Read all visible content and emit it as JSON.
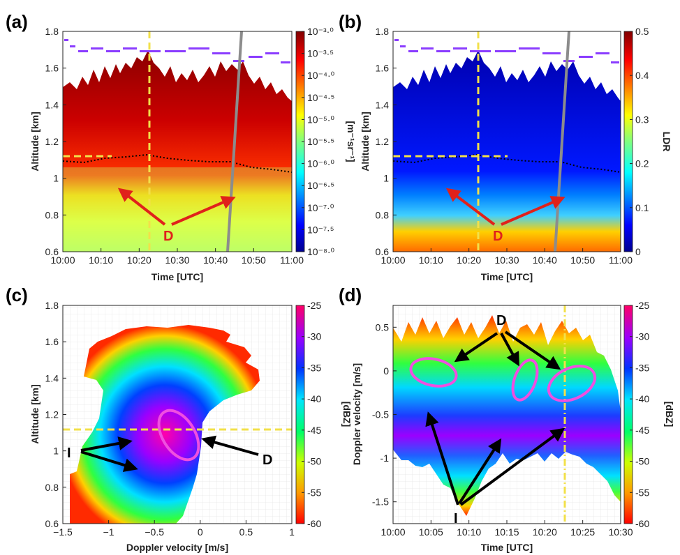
{
  "panels": [
    {
      "id": "a",
      "label": "(a)",
      "type": "heatmap",
      "xlabel": "Time [UTC]",
      "ylabel": "Altitude [km]",
      "xticks": [
        "10:00",
        "10:10",
        "10:20",
        "10:30",
        "10:40",
        "10:50",
        "11:00"
      ],
      "yticks": [
        "0.6",
        "0.8",
        "1",
        "1.2",
        "1.4",
        "1.6",
        "1.8"
      ],
      "colorbar_title": "[m⁻¹sr⁻¹]",
      "colorbar_ticks": [
        "10⁻³·⁰",
        "10⁻³·⁵",
        "10⁻⁴·⁰",
        "10⁻⁴·⁵",
        "10⁻⁵·⁰",
        "10⁻⁵·⁵",
        "10⁻⁶·⁰",
        "10⁻⁶·⁵",
        "10⁻⁷·⁰",
        "10⁻⁷·⁵",
        "10⁻⁸·⁰"
      ],
      "colormap": "jet",
      "annotation": "D"
    },
    {
      "id": "b",
      "label": "(b)",
      "type": "heatmap",
      "xlabel": "Time [UTC]",
      "ylabel": "Altitude [km]",
      "xticks": [
        "10:00",
        "10:10",
        "10:20",
        "10:30",
        "10:40",
        "10:50",
        "11:00"
      ],
      "yticks": [
        "0.6",
        "0.8",
        "1",
        "1.2",
        "1.4",
        "1.6",
        "1.8"
      ],
      "colorbar_title": "LDR",
      "colorbar_ticks": [
        "0.5",
        "0.4",
        "0.3",
        "0.2",
        "0.1",
        "0"
      ],
      "colormap": "jet",
      "annotation": "D"
    },
    {
      "id": "c",
      "label": "(c)",
      "type": "heatmap",
      "xlabel": "Doppler velocity [m/s]",
      "ylabel": "Altitude [km]",
      "xticks": [
        "−1.5",
        "−1",
        "−0.5",
        "0",
        "0.5",
        "1"
      ],
      "yticks": [
        "0.6",
        "0.8",
        "1",
        "1.2",
        "1.4",
        "1.6",
        "1.8"
      ],
      "colorbar_title": "[dBZ]",
      "colorbar_ticks": [
        "-25",
        "-30",
        "-35",
        "-40",
        "-45",
        "-50",
        "-55",
        "-60"
      ],
      "colormap": "hsv",
      "annotations": [
        "I",
        "D"
      ]
    },
    {
      "id": "d",
      "label": "(d)",
      "type": "heatmap",
      "xlabel": "Time [UTC]",
      "ylabel": "Doppler velocity [m/s]",
      "xticks": [
        "10:00",
        "10:05",
        "10:10",
        "10:15",
        "10:20",
        "10:25",
        "10:30"
      ],
      "yticks": [
        "0.5",
        "0",
        "-0.5",
        "-1",
        "-1.5"
      ],
      "colorbar_title": "[dBZ]",
      "colorbar_ticks": [
        "-25",
        "-30",
        "-35",
        "-40",
        "-45",
        "-50",
        "-55",
        "-60"
      ],
      "colormap": "hsv",
      "annotations": [
        "D",
        "I"
      ]
    }
  ],
  "chart_data": [
    {
      "type": "heatmap",
      "title": "(a)",
      "xlabel": "Time [UTC]",
      "ylabel": "Altitude [km]",
      "xlim": [
        "10:00",
        "11:00"
      ],
      "ylim": [
        0.6,
        1.8
      ],
      "colorbar": {
        "label": "[m⁻¹sr⁻¹]",
        "scale": "log",
        "range": [
          1e-08,
          0.001
        ]
      },
      "reference_lines": {
        "vertical_time": "10:22",
        "horizontal_altitude_km": 1.12
      },
      "cloud_base_km": 1.1,
      "cloud_top_km": 1.65
    },
    {
      "type": "heatmap",
      "title": "(b)",
      "xlabel": "Time [UTC]",
      "ylabel": "Altitude [km]",
      "xlim": [
        "10:00",
        "11:00"
      ],
      "ylim": [
        0.6,
        1.8
      ],
      "colorbar": {
        "label": "LDR",
        "range": [
          0,
          0.5
        ]
      },
      "reference_lines": {
        "vertical_time": "10:22",
        "horizontal_altitude_km": 1.12
      }
    },
    {
      "type": "heatmap",
      "title": "(c)",
      "xlabel": "Doppler velocity [m/s]",
      "ylabel": "Altitude [km]",
      "xlim": [
        -1.5,
        1
      ],
      "ylim": [
        0.6,
        1.8
      ],
      "colorbar": {
        "label": "[dBZ]",
        "range": [
          -60,
          -25
        ]
      },
      "reference_lines": {
        "horizontal_altitude_km": 1.12
      }
    },
    {
      "type": "heatmap",
      "title": "(d)",
      "xlabel": "Time [UTC]",
      "ylabel": "Doppler velocity [m/s]",
      "xlim": [
        "10:00",
        "10:30"
      ],
      "ylim": [
        -1.75,
        0.75
      ],
      "colorbar": {
        "label": "[dBZ]",
        "range": [
          -60,
          -25
        ]
      },
      "reference_lines": {
        "vertical_time": "10:23"
      }
    }
  ]
}
